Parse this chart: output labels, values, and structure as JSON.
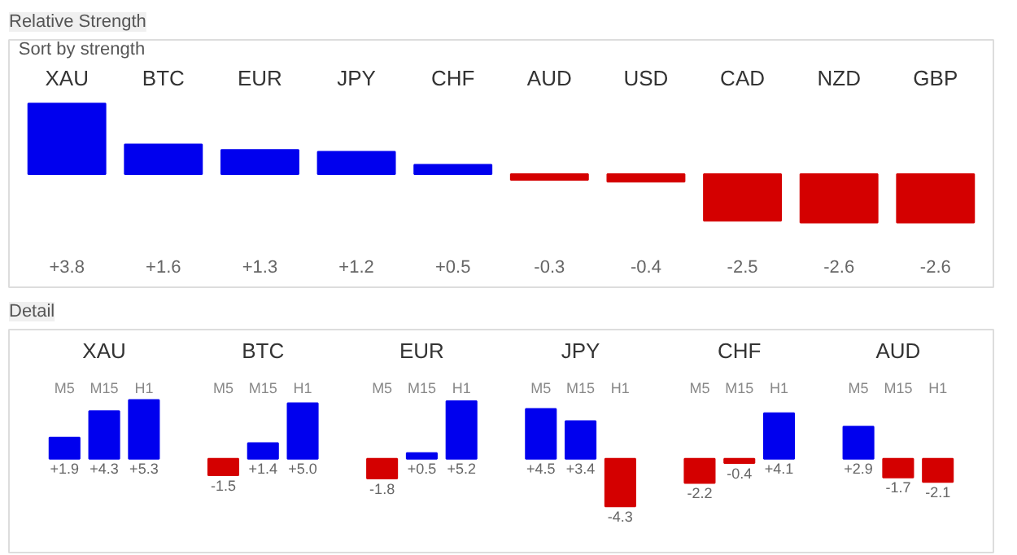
{
  "chart_data": [
    {
      "type": "bar",
      "title": "Relative Strength",
      "annotations": [
        "Sort by strength"
      ],
      "categories": [
        "XAU",
        "BTC",
        "EUR",
        "JPY",
        "CHF",
        "AUD",
        "USD",
        "CAD",
        "NZD",
        "GBP"
      ],
      "values": [
        3.8,
        1.6,
        1.3,
        1.2,
        0.5,
        -0.3,
        -0.4,
        -2.5,
        -2.6,
        -2.6
      ],
      "value_labels": [
        "+3.8",
        "+1.6",
        "+1.3",
        "+1.2",
        "+0.5",
        "-0.3",
        "-0.4",
        "-2.5",
        "-2.6",
        "-2.6"
      ],
      "colors": [
        "#0000ee",
        "#0000ee",
        "#0000ee",
        "#0000ee",
        "#0000ee",
        "#d40000",
        "#d40000",
        "#d40000",
        "#d40000",
        "#d40000"
      ]
    },
    {
      "type": "bar",
      "title": "Detail",
      "categories": [
        "XAU",
        "BTC",
        "EUR",
        "JPY",
        "CHF",
        "AUD"
      ],
      "series": [
        {
          "name": "M5",
          "values": [
            1.9,
            -1.5,
            -1.8,
            4.5,
            -2.2,
            2.9
          ],
          "value_labels": [
            "+1.9",
            "-1.5",
            "-1.8",
            "+4.5",
            "-2.2",
            "+2.9"
          ],
          "colors": [
            "#0000ee",
            "#d40000",
            "#d40000",
            "#0000ee",
            "#d40000",
            "#0000ee"
          ]
        },
        {
          "name": "M15",
          "values": [
            4.3,
            1.4,
            0.5,
            3.4,
            -0.4,
            -1.7
          ],
          "value_labels": [
            "+4.3",
            "+1.4",
            "+0.5",
            "+3.4",
            "-0.4",
            "-1.7"
          ],
          "colors": [
            "#0000ee",
            "#0000ee",
            "#0000ee",
            "#0000ee",
            "#d40000",
            "#d40000"
          ]
        },
        {
          "name": "H1",
          "values": [
            5.3,
            5.0,
            5.2,
            -4.3,
            4.1,
            -2.1
          ],
          "value_labels": [
            "+5.3",
            "+5.0",
            "+5.2",
            "-4.3",
            "+4.1",
            "-2.1"
          ],
          "colors": [
            "#0000ee",
            "#0000ee",
            "#0000ee",
            "#d40000",
            "#0000ee",
            "#d40000"
          ]
        }
      ]
    }
  ]
}
